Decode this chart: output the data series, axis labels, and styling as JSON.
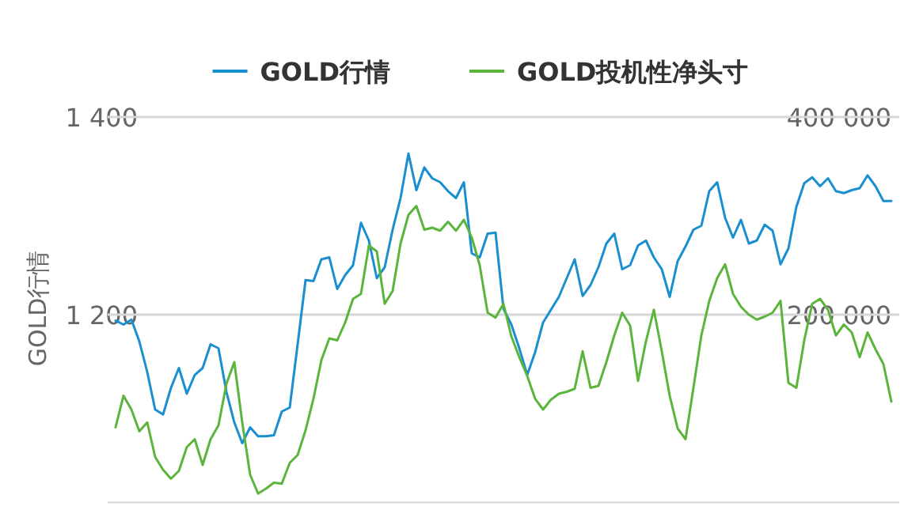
{
  "chart_data": {
    "type": "line",
    "ylabel": "GOLD行情",
    "legend": "top",
    "grid": "y",
    "categories": [
      null,
      null,
      null,
      null,
      null,
      null,
      null,
      null,
      null,
      null,
      null,
      null,
      null,
      null,
      null,
      null,
      null,
      null,
      null,
      null,
      null,
      null,
      null,
      null,
      null,
      null,
      null,
      null,
      null,
      null,
      null,
      null,
      null,
      null,
      null,
      null,
      null,
      null,
      null,
      null,
      null,
      null,
      null,
      null,
      null,
      null,
      null,
      null,
      null,
      null,
      null,
      null,
      null,
      null,
      null,
      null,
      null,
      null,
      null,
      null,
      null,
      null,
      null,
      null,
      null,
      null,
      null,
      null,
      null,
      null,
      null,
      null,
      null,
      null,
      null,
      null,
      null,
      null,
      null,
      null,
      null,
      null,
      null,
      null,
      null,
      null,
      null,
      null,
      null,
      null,
      null,
      null,
      null,
      null,
      null,
      null,
      null,
      null,
      null
    ],
    "ylim": [
      1010,
      1400
    ],
    "yticks": [
      {
        "value": 1200,
        "label": "1 200"
      },
      {
        "value": 1400,
        "label": "1 400"
      }
    ],
    "y2lim": [
      10000,
      400000
    ],
    "y2ticks": [
      {
        "value": 200000,
        "label": "200 000"
      },
      {
        "value": 400000,
        "label": "400 000"
      }
    ],
    "series": [
      {
        "name": "GOLD行情",
        "color": "#1a8fd0",
        "values": [
          1194,
          1190,
          1195,
          1173,
          1142,
          1104,
          1099,
          1126,
          1146,
          1120,
          1139,
          1146,
          1170,
          1166,
          1122,
          1091,
          1070,
          1086,
          1077,
          1077,
          1078,
          1102,
          1106,
          1170,
          1235,
          1234,
          1256,
          1258,
          1226,
          1240,
          1250,
          1293,
          1275,
          1237,
          1248,
          1286,
          1318,
          1363,
          1326,
          1349,
          1338,
          1334,
          1325,
          1318,
          1334,
          1262,
          1258,
          1282,
          1283,
          1206,
          1190,
          1166,
          1139,
          1162,
          1192,
          1205,
          1218,
          1237,
          1256,
          1219,
          1230,
          1248,
          1272,
          1282,
          1246,
          1250,
          1270,
          1275,
          1258,
          1246,
          1218,
          1254,
          1269,
          1286,
          1290,
          1325,
          1334,
          1298,
          1278,
          1296,
          1272,
          1275,
          1291,
          1285,
          1251,
          1267,
          1309,
          1333,
          1339,
          1330,
          1338,
          1325,
          1323,
          1326,
          1328,
          1341,
          1330,
          1315,
          1315
        ]
      },
      {
        "name": "GOLD投机性净头寸",
        "color": "#5bb53c",
        "axis": "y2",
        "values": [
          86000,
          118000,
          104000,
          82000,
          91000,
          56000,
          43000,
          34000,
          42000,
          66000,
          74000,
          48000,
          74000,
          88000,
          130000,
          152000,
          91000,
          38000,
          19000,
          24000,
          30000,
          29000,
          50000,
          58000,
          83000,
          115000,
          154000,
          176000,
          174000,
          192000,
          216000,
          221000,
          270000,
          264000,
          211000,
          224000,
          272000,
          301000,
          310000,
          286000,
          288000,
          285000,
          294000,
          285000,
          296000,
          278000,
          250000,
          202000,
          197000,
          211000,
          178000,
          157000,
          138000,
          115000,
          104000,
          114000,
          120000,
          122000,
          125000,
          163000,
          126000,
          128000,
          152000,
          179000,
          202000,
          189000,
          133000,
          173000,
          205000,
          163000,
          118000,
          85000,
          74000,
          126000,
          179000,
          214000,
          237000,
          251000,
          221000,
          208000,
          200000,
          195000,
          198000,
          202000,
          214000,
          131000,
          126000,
          174000,
          211000,
          216000,
          205000,
          179000,
          190000,
          182000,
          157000,
          182000,
          165000,
          150000,
          112000
        ]
      }
    ]
  }
}
